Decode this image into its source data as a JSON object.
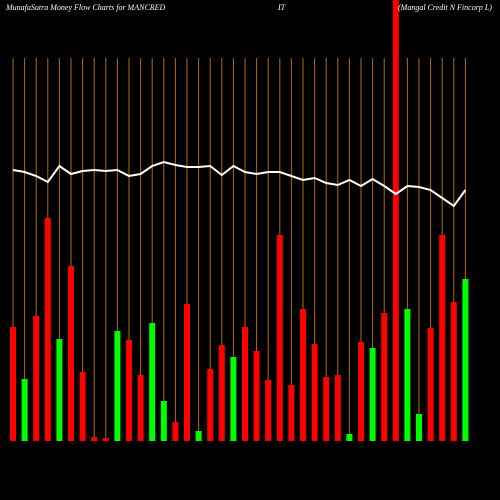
{
  "chart_data": {
    "type": "bar",
    "title": "MunafaSutra  Money Flow  Charts for MANCRED",
    "title_middle": "IT",
    "subtitle": "(Mangal Credit N  Fincorp L)",
    "categories": [
      null,
      null,
      null,
      null,
      null,
      null,
      null,
      null,
      null,
      null,
      null,
      null,
      null,
      null,
      null,
      null,
      null,
      null,
      null,
      null,
      null,
      null,
      null,
      null,
      null,
      null,
      null,
      null,
      null,
      null,
      null,
      null,
      null,
      null,
      null,
      null,
      null,
      null,
      null,
      null
    ],
    "values": [
      114,
      62,
      125,
      223,
      102,
      175,
      69,
      4,
      3,
      110,
      101,
      66,
      118,
      40,
      19,
      137,
      10,
      72,
      96,
      84,
      114,
      90,
      61,
      206,
      56,
      132,
      97,
      64,
      66,
      7,
      99,
      93,
      128,
      441,
      132,
      27,
      113,
      206,
      139,
      162
    ],
    "colors": [
      "#ff0000",
      "#00ff00",
      "#ff0000",
      "#ff0000",
      "#00ff00",
      "#ff0000",
      "#ff0000",
      "#ff0000",
      "#ff0000",
      "#00ff00",
      "#ff0000",
      "#ff0000",
      "#00ff00",
      "#00ff00",
      "#ff0000",
      "#ff0000",
      "#00ff00",
      "#ff0000",
      "#ff0000",
      "#00ff00",
      "#ff0000",
      "#ff0000",
      "#ff0000",
      "#ff0000",
      "#ff0000",
      "#ff0000",
      "#ff0000",
      "#ff0000",
      "#ff0000",
      "#00ff00",
      "#ff0000",
      "#00ff00",
      "#ff0000",
      "#ff0000",
      "#00ff00",
      "#00ff00",
      "#ff0000",
      "#ff0000",
      "#ff0000",
      "#00ff00"
    ],
    "line": {
      "type": "line",
      "color": "#ffffff",
      "values": [
        271,
        269,
        265,
        259,
        275,
        267,
        270,
        271,
        270,
        271,
        265,
        267,
        275,
        279,
        276,
        274,
        274,
        275,
        266,
        275,
        269,
        267,
        269,
        269,
        265,
        261,
        263,
        258,
        256,
        261,
        255,
        262,
        255,
        247,
        255,
        254,
        251,
        243,
        235,
        251
      ]
    },
    "guide_color": "#b86a00",
    "ylim": [
      0,
      441
    ]
  }
}
